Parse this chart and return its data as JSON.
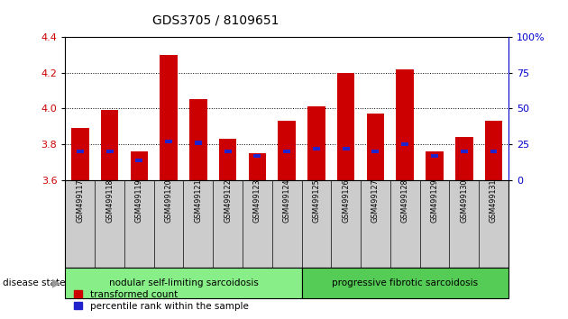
{
  "title": "GDS3705 / 8109651",
  "samples": [
    "GSM499117",
    "GSM499118",
    "GSM499119",
    "GSM499120",
    "GSM499121",
    "GSM499122",
    "GSM499123",
    "GSM499124",
    "GSM499125",
    "GSM499126",
    "GSM499127",
    "GSM499128",
    "GSM499129",
    "GSM499130",
    "GSM499131"
  ],
  "transformed_count": [
    3.89,
    3.99,
    3.76,
    4.3,
    4.05,
    3.83,
    3.75,
    3.93,
    4.01,
    4.2,
    3.97,
    4.22,
    3.76,
    3.84,
    3.93
  ],
  "percentile_rank": [
    20,
    20,
    14,
    27,
    26,
    20,
    17,
    20,
    22,
    22,
    20,
    25,
    17,
    20,
    20
  ],
  "y_min": 3.6,
  "y_max": 4.4,
  "y_ticks_left": [
    3.6,
    3.8,
    4.0,
    4.2,
    4.4
  ],
  "y_ticks_right": [
    0,
    25,
    50,
    75,
    100
  ],
  "bar_color": "#cc0000",
  "blue_color": "#2222cc",
  "group1_label": "nodular self-limiting sarcoidosis",
  "group2_label": "progressive fibrotic sarcoidosis",
  "group1_count": 8,
  "group2_count": 7,
  "group1_color": "#88ee88",
  "group2_color": "#55cc55",
  "disease_label": "disease state",
  "legend_red": "transformed count",
  "legend_blue": "percentile rank within the sample",
  "background_color": "#ffffff",
  "tick_label_color_left": "#cc0000",
  "tick_label_color_right": "#0000cc",
  "label_box_color": "#cccccc",
  "bar_width": 0.6
}
